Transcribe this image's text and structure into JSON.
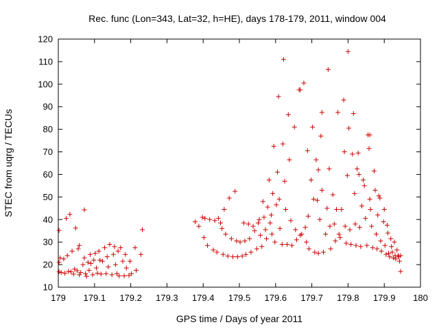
{
  "chart_data": {
    "type": "scatter",
    "title": "Rec. func (Lon=343, Lat=32, h=HE), days 178-179, 2011, window 004",
    "xlabel": "GPS time / Days of year 2011",
    "ylabel": "STEC from uqrg / TECUs",
    "xlim": [
      179,
      180
    ],
    "ylim": [
      10,
      120
    ],
    "xticks": [
      179,
      179.1,
      179.2,
      179.3,
      179.4,
      179.5,
      179.6,
      179.7,
      179.8,
      179.9,
      180
    ],
    "xtick_labels": [
      "179",
      "179.1",
      "179.2",
      "179.3",
      "179.4",
      "179.5",
      "179.6",
      "179.7",
      "179.8",
      "179.9",
      "180"
    ],
    "yticks": [
      10,
      20,
      30,
      40,
      50,
      60,
      70,
      80,
      90,
      100,
      110,
      120
    ],
    "ytick_labels": [
      "10",
      "20",
      "30",
      "40",
      "50",
      "60",
      "70",
      "80",
      "90",
      "100",
      "110",
      "120"
    ],
    "marker": "+",
    "marker_color": "#cc0000",
    "grid": false,
    "legend": "none",
    "points": [
      [
        179.002,
        35.2
      ],
      [
        179.002,
        21.0
      ],
      [
        179.002,
        16.8
      ],
      [
        179.005,
        23.0
      ],
      [
        179.008,
        16.5
      ],
      [
        179.015,
        22.5
      ],
      [
        179.018,
        16.2
      ],
      [
        179.022,
        40.5
      ],
      [
        179.025,
        24.0
      ],
      [
        179.028,
        17.0
      ],
      [
        179.032,
        42.3
      ],
      [
        179.035,
        16.8
      ],
      [
        179.038,
        26.0
      ],
      [
        179.042,
        15.8
      ],
      [
        179.045,
        18.0
      ],
      [
        179.048,
        36.2
      ],
      [
        179.052,
        17.3
      ],
      [
        179.055,
        27.0
      ],
      [
        179.058,
        15.5
      ],
      [
        179.058,
        28.5
      ],
      [
        179.062,
        16.5
      ],
      [
        179.068,
        20.0
      ],
      [
        179.072,
        44.3
      ],
      [
        179.072,
        23.0
      ],
      [
        179.075,
        16.0
      ],
      [
        179.078,
        14.8
      ],
      [
        179.082,
        21.0
      ],
      [
        179.085,
        17.5
      ],
      [
        179.088,
        24.5
      ],
      [
        179.09,
        20.5
      ],
      [
        179.095,
        15.5
      ],
      [
        179.098,
        22.0
      ],
      [
        179.102,
        25.0
      ],
      [
        179.105,
        18.5
      ],
      [
        179.108,
        16.2
      ],
      [
        179.112,
        26.0
      ],
      [
        179.115,
        22.0
      ],
      [
        179.118,
        15.8
      ],
      [
        179.122,
        21.5
      ],
      [
        179.128,
        27.5
      ],
      [
        179.132,
        16.0
      ],
      [
        179.135,
        23.5
      ],
      [
        179.138,
        19.0
      ],
      [
        179.142,
        29.0
      ],
      [
        179.148,
        15.5
      ],
      [
        179.152,
        24.5
      ],
      [
        179.155,
        28.0
      ],
      [
        179.158,
        20.0
      ],
      [
        179.162,
        16.0
      ],
      [
        179.165,
        26.0
      ],
      [
        179.168,
        15.0
      ],
      [
        179.172,
        27.5
      ],
      [
        179.178,
        21.5
      ],
      [
        179.182,
        15.0
      ],
      [
        179.185,
        24.5
      ],
      [
        179.188,
        18.5
      ],
      [
        179.195,
        15.2
      ],
      [
        179.198,
        21.5
      ],
      [
        179.202,
        16.0
      ],
      [
        179.212,
        27.5
      ],
      [
        179.215,
        17.5
      ],
      [
        179.228,
        24.5
      ],
      [
        179.232,
        35.5
      ],
      [
        179.378,
        39.0
      ],
      [
        179.388,
        37.0
      ],
      [
        179.398,
        41.0
      ],
      [
        179.402,
        32.0
      ],
      [
        179.405,
        40.5
      ],
      [
        179.412,
        28.5
      ],
      [
        179.418,
        40.0
      ],
      [
        179.428,
        26.5
      ],
      [
        179.432,
        39.5
      ],
      [
        179.438,
        25.5
      ],
      [
        179.442,
        40.5
      ],
      [
        179.448,
        38.5
      ],
      [
        179.452,
        36.0
      ],
      [
        179.455,
        24.5
      ],
      [
        179.458,
        44.5
      ],
      [
        179.462,
        33.5
      ],
      [
        179.468,
        23.8
      ],
      [
        179.472,
        49.5
      ],
      [
        179.478,
        31.5
      ],
      [
        179.482,
        23.5
      ],
      [
        179.488,
        52.5
      ],
      [
        179.492,
        30.5
      ],
      [
        179.495,
        23.5
      ],
      [
        179.502,
        30.0
      ],
      [
        179.508,
        23.8
      ],
      [
        179.512,
        38.5
      ],
      [
        179.515,
        30.5
      ],
      [
        179.518,
        24.5
      ],
      [
        179.525,
        38.0
      ],
      [
        179.528,
        31.5
      ],
      [
        179.532,
        25.5
      ],
      [
        179.538,
        37.0
      ],
      [
        179.542,
        35.0
      ],
      [
        179.548,
        27.0
      ],
      [
        179.552,
        38.5
      ],
      [
        179.555,
        40.0
      ],
      [
        179.558,
        33.0
      ],
      [
        179.562,
        28.0
      ],
      [
        179.565,
        48.0
      ],
      [
        179.568,
        41.0
      ],
      [
        179.572,
        35.5
      ],
      [
        179.575,
        31.5
      ],
      [
        179.578,
        45.5
      ],
      [
        179.582,
        57.5
      ],
      [
        179.585,
        38.5
      ],
      [
        179.588,
        42.0
      ],
      [
        179.59,
        33.5
      ],
      [
        179.592,
        51.5
      ],
      [
        179.595,
        72.5
      ],
      [
        179.598,
        30.0
      ],
      [
        179.602,
        46.5
      ],
      [
        179.605,
        61.0
      ],
      [
        179.608,
        94.5
      ],
      [
        179.61,
        49.0
      ],
      [
        179.612,
        36.0
      ],
      [
        179.618,
        29.0
      ],
      [
        179.62,
        73.5
      ],
      [
        179.622,
        111.0
      ],
      [
        179.625,
        57.0
      ],
      [
        179.628,
        44.5
      ],
      [
        179.632,
        29.0
      ],
      [
        179.635,
        86.5
      ],
      [
        179.638,
        66.5
      ],
      [
        179.642,
        39.5
      ],
      [
        179.645,
        28.5
      ],
      [
        179.652,
        81.0
      ],
      [
        179.655,
        35.5
      ],
      [
        179.658,
        31.0
      ],
      [
        179.665,
        97.5
      ],
      [
        179.668,
        97.5
      ],
      [
        179.668,
        33.0
      ],
      [
        179.672,
        33.5
      ],
      [
        179.678,
        100.5
      ],
      [
        179.682,
        36.5
      ],
      [
        179.685,
        30.0
      ],
      [
        179.688,
        70.5
      ],
      [
        179.69,
        41.5
      ],
      [
        179.692,
        27.0
      ],
      [
        179.698,
        57.5
      ],
      [
        179.702,
        81.0
      ],
      [
        179.705,
        49.0
      ],
      [
        179.708,
        25.5
      ],
      [
        179.712,
        66.5
      ],
      [
        179.715,
        48.5
      ],
      [
        179.718,
        62.0
      ],
      [
        179.718,
        25.0
      ],
      [
        179.722,
        40.0
      ],
      [
        179.725,
        77.0
      ],
      [
        179.728,
        53.0
      ],
      [
        179.728,
        87.5
      ],
      [
        179.732,
        25.5
      ],
      [
        179.738,
        33.5
      ],
      [
        179.742,
        45.0
      ],
      [
        179.745,
        106.5
      ],
      [
        179.748,
        62.5
      ],
      [
        179.75,
        37.0
      ],
      [
        179.752,
        27.0
      ],
      [
        179.758,
        51.0
      ],
      [
        179.762,
        38.0
      ],
      [
        179.765,
        30.5
      ],
      [
        179.768,
        44.5
      ],
      [
        179.772,
        87.5
      ],
      [
        179.775,
        33.5
      ],
      [
        179.778,
        32.0
      ],
      [
        179.782,
        44.5
      ],
      [
        179.788,
        93.0
      ],
      [
        179.79,
        70.0
      ],
      [
        179.792,
        37.0
      ],
      [
        179.795,
        29.5
      ],
      [
        179.798,
        59.5
      ],
      [
        179.8,
        114.5
      ],
      [
        179.802,
        80.5
      ],
      [
        179.805,
        35.5
      ],
      [
        179.808,
        29.0
      ],
      [
        179.812,
        69.0
      ],
      [
        179.815,
        87.0
      ],
      [
        179.818,
        51.5
      ],
      [
        179.82,
        38.0
      ],
      [
        179.822,
        28.5
      ],
      [
        179.825,
        62.5
      ],
      [
        179.828,
        69.5
      ],
      [
        179.83,
        60.0
      ],
      [
        179.832,
        36.5
      ],
      [
        179.835,
        28.0
      ],
      [
        179.838,
        46.0
      ],
      [
        179.842,
        57.5
      ],
      [
        179.845,
        55.0
      ],
      [
        179.848,
        40.5
      ],
      [
        179.852,
        28.5
      ],
      [
        179.855,
        77.5
      ],
      [
        179.858,
        71.5
      ],
      [
        179.86,
        77.5
      ],
      [
        179.86,
        49.0
      ],
      [
        179.862,
        44.5
      ],
      [
        179.865,
        37.0
      ],
      [
        179.868,
        27.5
      ],
      [
        179.872,
        61.5
      ],
      [
        179.875,
        53.0
      ],
      [
        179.878,
        33.5
      ],
      [
        179.88,
        27.0
      ],
      [
        179.882,
        42.0
      ],
      [
        179.885,
        50.5
      ],
      [
        179.888,
        49.5
      ],
      [
        179.89,
        30.5
      ],
      [
        179.892,
        26.0
      ],
      [
        179.898,
        39.0
      ],
      [
        179.9,
        44.5
      ],
      [
        179.902,
        28.5
      ],
      [
        179.905,
        24.5
      ],
      [
        179.908,
        37.5
      ],
      [
        179.91,
        34.0
      ],
      [
        179.912,
        25.0
      ],
      [
        179.915,
        23.5
      ],
      [
        179.918,
        31.5
      ],
      [
        179.92,
        28.0
      ],
      [
        179.922,
        25.5
      ],
      [
        179.925,
        23.0
      ],
      [
        179.928,
        30.0
      ],
      [
        179.93,
        24.0
      ],
      [
        179.932,
        22.5
      ],
      [
        179.935,
        26.5
      ],
      [
        179.938,
        24.0
      ],
      [
        179.94,
        23.5
      ],
      [
        179.942,
        21.5
      ],
      [
        179.945,
        17.0
      ],
      [
        179.945,
        24.0
      ]
    ]
  }
}
